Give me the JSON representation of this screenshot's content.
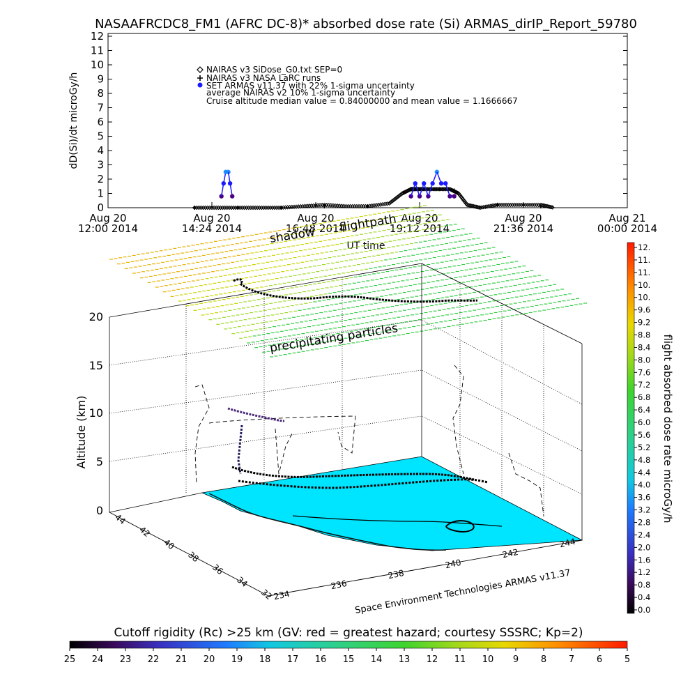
{
  "title": "NASAAFRCDC8_FM1 (AFRC DC-8)* absorbed dose rate (Si) ARMAS_dirIP_Report_59780",
  "colors": {
    "nairas_v3": "#000000",
    "nasa_larc": "#000000",
    "armas": "#1a1aff",
    "armas_dark": "#4b0082",
    "armas_light": "#1e90ff",
    "terrain": "#00e5ff",
    "rigidity_yellow": "#e0d000",
    "rigidity_green": "#33cc33"
  },
  "top_panel": {
    "ylabel": "dD(Si)/dt microGy/h",
    "y_ticks": [
      "0",
      "1",
      "2",
      "3",
      "4",
      "5",
      "6",
      "7",
      "8",
      "9",
      "10",
      "11",
      "12"
    ],
    "x_ticks": [
      {
        "line1": "Aug 20",
        "line2": "12:00 2014"
      },
      {
        "line1": "Aug 20",
        "line2": "14:24 2014"
      },
      {
        "line1": "Aug 20",
        "line2": "16:48 2014"
      },
      {
        "line1": "Aug 20",
        "line2": "19:12 2014"
      },
      {
        "line1": "Aug 20",
        "line2": "21:36 2014"
      },
      {
        "line1": "Aug 21",
        "line2": "00:00 2014"
      }
    ],
    "xlabel": "UT time",
    "legend": [
      {
        "symbol": "diamond",
        "text": "NAIRAS v3 SiDose_G0.txt SEP=0"
      },
      {
        "symbol": "plus",
        "text": "NAIRAS v3 NASA LaRC runs"
      },
      {
        "symbol": "dot",
        "text": "SET ARMAS v11.37 with 22% 1-sigma uncertainty"
      },
      {
        "symbol": "none",
        "text": "average NAIRAS v2 10% 1-sigma uncertainty"
      },
      {
        "symbol": "none",
        "text": "Cruise altitude median value = 0.84000000 and mean value = 1.1666667"
      }
    ]
  },
  "chart_data": [
    {
      "type": "scatter",
      "title": "NASAAFRCDC8_FM1 (AFRC DC-8)* absorbed dose rate (Si) ARMAS_dirIP_Report_59780",
      "xlabel": "UT time",
      "ylabel": "dD(Si)/dt microGy/h",
      "xlim": [
        "Aug 20 12:00 2014",
        "Aug 21 00:00 2014"
      ],
      "ylim": [
        0,
        12
      ],
      "x_unit": "hours UT on Aug 20 2014",
      "series": [
        {
          "name": "NAIRAS v3 SiDose_G0.txt SEP=0",
          "x": [
            14.0,
            14.5,
            15.0,
            15.5,
            16.0,
            16.5,
            17.0,
            17.5,
            18.0,
            18.5,
            18.8,
            19.0,
            19.1,
            19.3,
            19.6,
            19.9,
            20.1,
            20.3,
            20.6,
            21.0,
            21.5,
            22.0,
            22.3
          ],
          "y": [
            0,
            0,
            0,
            0,
            0,
            0.1,
            0.2,
            0.1,
            0.1,
            0.3,
            1.0,
            1.3,
            1.3,
            1.3,
            1.3,
            1.3,
            1.0,
            0.2,
            0.0,
            0.2,
            0.2,
            0.2,
            0.0
          ]
        },
        {
          "name": "NAIRAS v3 NASA LaRC runs",
          "x": [
            14.0,
            15.0,
            16.0,
            17.0,
            18.0,
            19.0,
            20.0,
            21.0,
            22.0
          ],
          "y": [
            0,
            0,
            0,
            0.1,
            0.1,
            1.3,
            1.2,
            0.2,
            0.1
          ]
        },
        {
          "name": "SET ARMAS v11.37 with 22% 1-sigma uncertainty",
          "x": [
            14.62,
            14.67,
            14.72,
            14.78,
            14.82,
            14.87,
            19.0,
            19.1,
            19.2,
            19.3,
            19.4,
            19.5,
            19.6,
            19.7,
            19.8,
            19.9,
            20.0
          ],
          "y": [
            0.8,
            1.7,
            2.5,
            2.5,
            1.7,
            0.8,
            0.8,
            1.7,
            0.8,
            1.7,
            0.8,
            1.7,
            2.5,
            1.7,
            1.7,
            0.8,
            0.8
          ]
        }
      ]
    },
    {
      "type": "scatter",
      "xlabel": "",
      "ylabel": "Altitude (km)",
      "z_ticks": [
        "0",
        "5",
        "10",
        "15",
        "20"
      ],
      "lat_ticks": [
        "44",
        "42",
        "40",
        "38",
        "36",
        "34",
        "32"
      ],
      "lon_ticks": [
        "234",
        "236",
        "238",
        "240",
        "242",
        "244"
      ],
      "annotations": [
        "shadow",
        "flightpath",
        "precipitating particles"
      ],
      "series": [
        {
          "name": "flightpath",
          "x": [
            236.2,
            236.8,
            237.5,
            238.5,
            239.5,
            240.5,
            241.5,
            242.3
          ],
          "y": [
            36.5,
            36.0,
            35.8,
            35.6,
            35.8,
            35.6,
            35.5,
            35.6
          ],
          "z": [
            11.8,
            11.8,
            11.8,
            11.8,
            11.8,
            11.8,
            11.8,
            11.8
          ]
        }
      ]
    }
  ],
  "right_colorbar": {
    "label": "flight absorbed dose rate microGy/h",
    "ticks": [
      "12.",
      "11.",
      "11.",
      "10.",
      "10.",
      "9.6",
      "9.2",
      "8.8",
      "8.4",
      "8.0",
      "7.6",
      "7.2",
      "6.8",
      "6.4",
      "6.0",
      "5.6",
      "5.2",
      "4.8",
      "4.4",
      "4.0",
      "3.6",
      "3.2",
      "2.8",
      "2.4",
      "2.0",
      "1.6",
      "1.2",
      "0.8",
      "0.4",
      "0.0"
    ]
  },
  "bottom_colorbar": {
    "label": "Cutoff rigidity (Rc) >25 km (GV: red = greatest hazard; courtesy SSSRC; Kp=2)",
    "ticks": [
      "25",
      "24",
      "23",
      "22",
      "21",
      "20",
      "19",
      "18",
      "17",
      "16",
      "15",
      "14",
      "13",
      "12",
      "11",
      "10",
      "9",
      "8",
      "7",
      "6",
      "5"
    ]
  },
  "credit": "Space Environment Technologies ARMAS v11.37",
  "annotations": {
    "shadow": "shadow",
    "flightpath": "flightpath",
    "precipitating": "precipitating particles"
  }
}
